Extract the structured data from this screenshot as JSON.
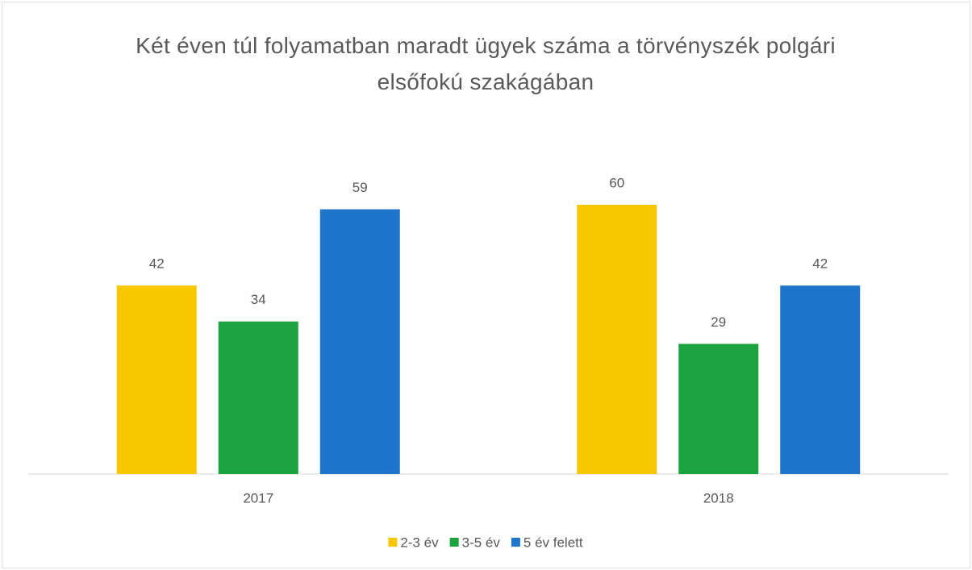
{
  "chart_data": {
    "type": "bar",
    "title": "Két éven túl folyamatban maradt ügyek száma a törvényszék polgári elsőfokú szakágában",
    "categories": [
      "2017",
      "2018"
    ],
    "series": [
      {
        "name": "2-3 év",
        "color": "#f9c700",
        "values": [
          42,
          60
        ]
      },
      {
        "name": "3-5 év",
        "color": "#1aa33f",
        "values": [
          34,
          29
        ]
      },
      {
        "name": "5 év felett",
        "color": "#1f75c9",
        "values": [
          59,
          42
        ]
      }
    ],
    "legend": "bottom"
  }
}
